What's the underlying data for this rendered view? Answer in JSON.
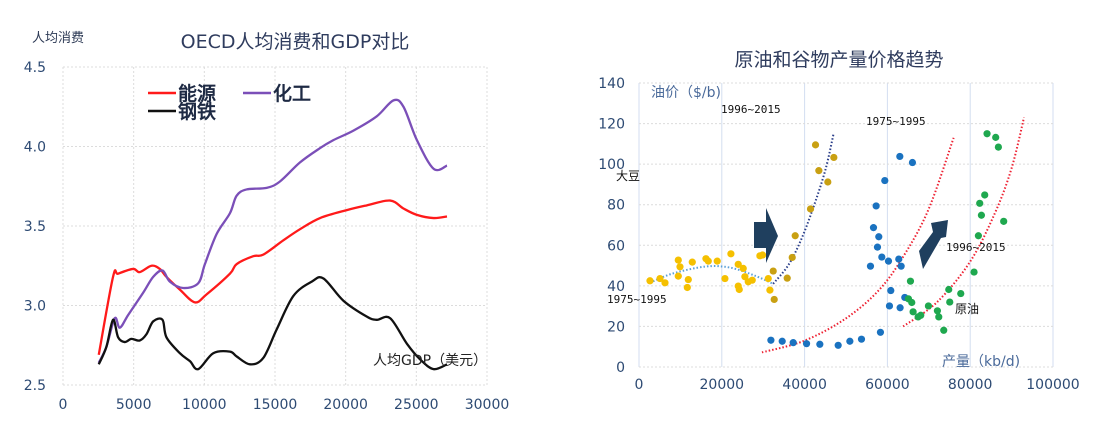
{
  "chart_data": [
    {
      "type": "line",
      "title": "OECD人均消费和GDP对比",
      "ylabel": "人均消费",
      "xlabel": "人均GDP（美元）",
      "xlim": [
        0,
        30000
      ],
      "ylim": [
        2.5,
        4.5
      ],
      "x_ticks": [
        "0",
        "5000",
        "10000",
        "15000",
        "20000",
        "25000",
        "30000"
      ],
      "y_ticks": [
        "2.5",
        "3.0",
        "3.5",
        "4.0",
        "4.5"
      ],
      "grid": true,
      "legend_position": "top-left",
      "series": [
        {
          "name": "能源",
          "color": "#ff1a1a",
          "points": [
            [
              2530,
              2.69
            ],
            [
              3540,
              3.18
            ],
            [
              3900,
              3.2
            ],
            [
              4960,
              3.23
            ],
            [
              5430,
              3.21
            ],
            [
              6260,
              3.25
            ],
            [
              6850,
              3.23
            ],
            [
              7320,
              3.18
            ],
            [
              8270,
              3.1
            ],
            [
              9330,
              3.02
            ],
            [
              10160,
              3.07
            ],
            [
              11810,
              3.2
            ],
            [
              12280,
              3.26
            ],
            [
              13460,
              3.31
            ],
            [
              14170,
              3.32
            ],
            [
              15590,
              3.41
            ],
            [
              16770,
              3.48
            ],
            [
              18190,
              3.55
            ],
            [
              20080,
              3.6
            ],
            [
              21500,
              3.63
            ],
            [
              23150,
              3.66
            ],
            [
              24090,
              3.61
            ],
            [
              25040,
              3.57
            ],
            [
              26220,
              3.55
            ],
            [
              27170,
              3.56
            ]
          ]
        },
        {
          "name": "化工",
          "color": "#7b4fb8",
          "points": [
            [
              2530,
              2.64
            ],
            [
              3070,
              2.74
            ],
            [
              3660,
              2.92
            ],
            [
              4020,
              2.86
            ],
            [
              4610,
              2.94
            ],
            [
              5670,
              3.08
            ],
            [
              6380,
              3.18
            ],
            [
              7040,
              3.22
            ],
            [
              7560,
              3.15
            ],
            [
              8500,
              3.11
            ],
            [
              9570,
              3.14
            ],
            [
              10040,
              3.26
            ],
            [
              10870,
              3.45
            ],
            [
              11810,
              3.58
            ],
            [
              12280,
              3.69
            ],
            [
              12990,
              3.73
            ],
            [
              14410,
              3.74
            ],
            [
              15350,
              3.78
            ],
            [
              16770,
              3.9
            ],
            [
              18190,
              3.99
            ],
            [
              19130,
              4.04
            ],
            [
              20550,
              4.1
            ],
            [
              22200,
              4.19
            ],
            [
              23380,
              4.29
            ],
            [
              24090,
              4.25
            ],
            [
              25040,
              4.04
            ],
            [
              26220,
              3.86
            ],
            [
              27170,
              3.88
            ]
          ]
        },
        {
          "name": "钢铁",
          "color": "#111111",
          "points": [
            [
              2530,
              2.63
            ],
            [
              3070,
              2.74
            ],
            [
              3540,
              2.91
            ],
            [
              3900,
              2.8
            ],
            [
              4370,
              2.77
            ],
            [
              4840,
              2.79
            ],
            [
              5430,
              2.78
            ],
            [
              5910,
              2.82
            ],
            [
              6380,
              2.9
            ],
            [
              7040,
              2.91
            ],
            [
              7320,
              2.8
            ],
            [
              8270,
              2.7
            ],
            [
              8980,
              2.65
            ],
            [
              9570,
              2.6
            ],
            [
              10630,
              2.7
            ],
            [
              11810,
              2.71
            ],
            [
              12280,
              2.68
            ],
            [
              13230,
              2.63
            ],
            [
              14170,
              2.67
            ],
            [
              15120,
              2.85
            ],
            [
              16300,
              3.06
            ],
            [
              17600,
              3.15
            ],
            [
              18430,
              3.17
            ],
            [
              19840,
              3.03
            ],
            [
              21500,
              2.93
            ],
            [
              22200,
              2.91
            ],
            [
              23150,
              2.92
            ],
            [
              24330,
              2.76
            ],
            [
              25280,
              2.66
            ],
            [
              26220,
              2.6
            ],
            [
              27170,
              2.63
            ]
          ]
        }
      ]
    },
    {
      "type": "scatter",
      "title": "原油和谷物产量价格趋势",
      "ylabel": "油价（$/b)",
      "xlabel": "产量（kb/d)",
      "xlim": [
        0,
        100000
      ],
      "ylim": [
        0,
        140
      ],
      "x_ticks": [
        "0",
        "20000",
        "40000",
        "60000",
        "80000",
        "100000"
      ],
      "y_ticks": [
        "0",
        "20",
        "40",
        "60",
        "80",
        "100",
        "120",
        "140"
      ],
      "grid": true,
      "labels": {
        "soybean": "大豆",
        "oil": "原油"
      },
      "annotations": {
        "soy_early": "1975~1995",
        "soy_late": "1996~2015",
        "oil_early": "1975~1995",
        "oil_late": "1996~2015"
      },
      "series": [
        {
          "group": "大豆 1975~1995",
          "color": "#f5c000",
          "points": [
            [
              2650,
              42.5
            ],
            [
              5070,
              43.6
            ],
            [
              6280,
              41.5
            ],
            [
              9490,
              52.7
            ],
            [
              9900,
              49.4
            ],
            [
              9490,
              44.8
            ],
            [
              11910,
              43.1
            ],
            [
              11670,
              39.2
            ],
            [
              12870,
              51.7
            ],
            [
              16170,
              53.4
            ],
            [
              16730,
              52.2
            ],
            [
              18900,
              52.2
            ],
            [
              20760,
              43.6
            ],
            [
              22200,
              55.8
            ],
            [
              23970,
              50.6
            ],
            [
              23970,
              39.9
            ],
            [
              24220,
              38.2
            ],
            [
              25180,
              48.6
            ],
            [
              25580,
              44.5
            ],
            [
              26390,
              42.0
            ],
            [
              27350,
              42.8
            ],
            [
              29200,
              54.8
            ],
            [
              29850,
              55.2
            ],
            [
              31220,
              43.6
            ],
            [
              31620,
              37.9
            ]
          ]
        },
        {
          "group": "大豆 1996~2015",
          "color": "#c9a012",
          "points": [
            [
              32420,
              47.3
            ],
            [
              32660,
              33.3
            ],
            [
              35800,
              43.8
            ],
            [
              37010,
              54.0
            ],
            [
              37730,
              64.7
            ],
            [
              41430,
              77.9
            ],
            [
              42640,
              109.5
            ],
            [
              43440,
              96.8
            ],
            [
              45610,
              91.2
            ],
            [
              47060,
              103.3
            ]
          ]
        },
        {
          "group": "原油 1975~1995",
          "color": "#1a72c0",
          "points": [
            [
              31860,
              13.2
            ],
            [
              34590,
              12.7
            ],
            [
              37250,
              12.0
            ],
            [
              40470,
              11.5
            ],
            [
              43680,
              11.2
            ],
            [
              48110,
              10.7
            ],
            [
              50930,
              12.7
            ],
            [
              53740,
              13.7
            ],
            [
              55910,
              49.7
            ],
            [
              56640,
              68.7
            ],
            [
              57280,
              79.4
            ],
            [
              57600,
              59.1
            ],
            [
              57920,
              64.2
            ],
            [
              58320,
              17.1
            ],
            [
              58650,
              54.2
            ],
            [
              59370,
              91.9
            ],
            [
              60260,
              52.2
            ],
            [
              60500,
              30.1
            ],
            [
              60820,
              37.7
            ],
            [
              62750,
              53.2
            ],
            [
              63000,
              103.8
            ],
            [
              63070,
              29.2
            ],
            [
              63320,
              49.7
            ],
            [
              64200,
              34.3
            ],
            [
              66050,
              100.8
            ]
          ]
        },
        {
          "group": "原油 1996~2015",
          "color": "#1fa84f",
          "points": [
            [
              65080,
              33.6
            ],
            [
              65570,
              42.3
            ],
            [
              65890,
              31.8
            ],
            [
              66210,
              27.2
            ],
            [
              67420,
              24.7
            ],
            [
              68060,
              25.5
            ],
            [
              69910,
              30.1
            ],
            [
              72080,
              27.7
            ],
            [
              72410,
              24.7
            ],
            [
              73610,
              18.1
            ],
            [
              74820,
              38.2
            ],
            [
              75060,
              32.0
            ],
            [
              77720,
              36.2
            ],
            [
              80930,
              46.8
            ],
            [
              81980,
              64.7
            ],
            [
              82300,
              80.7
            ],
            [
              82710,
              74.8
            ],
            [
              83510,
              84.8
            ],
            [
              84070,
              115.0
            ],
            [
              86160,
              113.2
            ],
            [
              86810,
              108.4
            ],
            [
              88090,
              71.8
            ]
          ]
        }
      ],
      "trendlines": [
        {
          "color": "#5aa0d8",
          "points": [
            [
              2650,
              41.5
            ],
            [
              8000,
              46
            ],
            [
              16000,
              49.5
            ],
            [
              22000,
              49
            ],
            [
              28000,
              45
            ],
            [
              32400,
              41
            ]
          ]
        },
        {
          "color": "#2b3f8a",
          "points": [
            [
              32400,
              41
            ],
            [
              36000,
              50
            ],
            [
              39000,
              62
            ],
            [
              42000,
              78
            ],
            [
              45000,
              97
            ],
            [
              47000,
              115
            ]
          ]
        },
        {
          "color": "#ee2233",
          "points": [
            [
              29700,
              7.2
            ],
            [
              40000,
              13
            ],
            [
              50000,
              24
            ],
            [
              58000,
              38
            ],
            [
              64000,
              55
            ],
            [
              70000,
              78
            ],
            [
              76000,
              113
            ]
          ]
        },
        {
          "color": "#ee2233",
          "points": [
            [
              63800,
              20
            ],
            [
              72000,
              32
            ],
            [
              80000,
              52
            ],
            [
              86000,
              76
            ],
            [
              90000,
              98
            ],
            [
              93000,
              123
            ]
          ]
        }
      ]
    }
  ]
}
